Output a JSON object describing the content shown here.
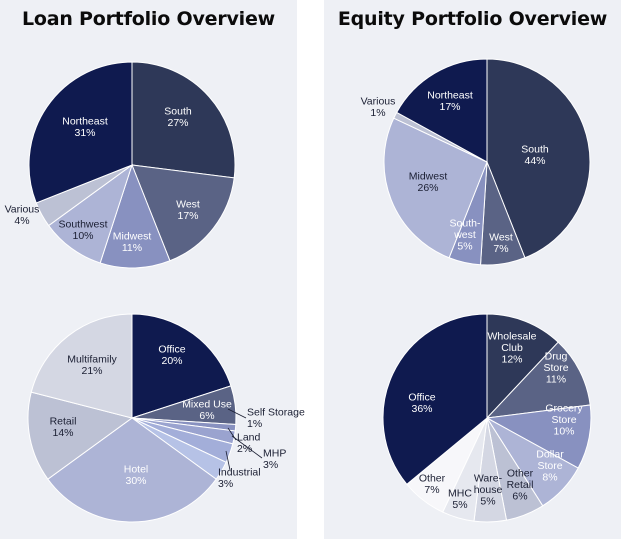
{
  "titles": {
    "left": "Loan Portfolio Overview",
    "right": "Equity Portfolio Overview"
  },
  "colors": {
    "navy": "#0f1a4f",
    "slate": "#2e3858",
    "slate_mid": "#5a6385",
    "periwinkle": "#8891c0",
    "lavender": "#adb4d6",
    "light_gray": "#bcc1d4",
    "pale": "#d4d7e3",
    "white": "#ffffff"
  },
  "chart_data": [
    {
      "type": "pie",
      "title": "Loan Portfolio Overview",
      "dimension": "Region",
      "slices": [
        {
          "label": "South",
          "value": 27,
          "display": "27%",
          "color": "#2e3858"
        },
        {
          "label": "West",
          "value": 17,
          "display": "17%",
          "color": "#5a6385"
        },
        {
          "label": "Midwest",
          "value": 11,
          "display": "11%",
          "color": "#8891c0"
        },
        {
          "label": "Southwest",
          "value": 10,
          "display": "10%",
          "color": "#adb4d6"
        },
        {
          "label": "Various",
          "value": 4,
          "display": "4%",
          "color": "#bcc1d4"
        },
        {
          "label": "Northeast",
          "value": 31,
          "display": "31%",
          "color": "#0f1a4f"
        }
      ]
    },
    {
      "type": "pie",
      "title": "Loan Portfolio Overview",
      "dimension": "Property Type",
      "slices": [
        {
          "label": "Office",
          "value": 20,
          "display": "20%",
          "color": "#0f1a4f"
        },
        {
          "label": "Mixed Use",
          "value": 6,
          "display": "6%",
          "color": "#5a6385"
        },
        {
          "label": "Self Storage",
          "value": 1,
          "display": "1%",
          "color": "#8891c0"
        },
        {
          "label": "Land",
          "value": 2,
          "display": "2%",
          "color": "#9aa3cf"
        },
        {
          "label": "MHP",
          "value": 3,
          "display": "3%",
          "color": "#a3aed9"
        },
        {
          "label": "Industrial",
          "value": 3,
          "display": "3%",
          "color": "#b6c2e6"
        },
        {
          "label": "Hotel",
          "value": 30,
          "display": "30%",
          "color": "#adb4d6"
        },
        {
          "label": "Retail",
          "value": 14,
          "display": "14%",
          "color": "#bcc1d4"
        },
        {
          "label": "Multifamily",
          "value": 21,
          "display": "21%",
          "color": "#d4d7e3"
        }
      ]
    },
    {
      "type": "pie",
      "title": "Equity Portfolio Overview",
      "dimension": "Region",
      "slices": [
        {
          "label": "South",
          "value": 44,
          "display": "44%",
          "color": "#2e3858"
        },
        {
          "label": "West",
          "value": 7,
          "display": "7%",
          "color": "#5a6385"
        },
        {
          "label": "South-west",
          "value": 5,
          "display": "5%",
          "color": "#8891c0"
        },
        {
          "label": "Midwest",
          "value": 26,
          "display": "26%",
          "color": "#adb4d6"
        },
        {
          "label": "Various",
          "value": 1,
          "display": "1%",
          "color": "#bcc1d4"
        },
        {
          "label": "Northeast",
          "value": 17,
          "display": "17%",
          "color": "#0f1a4f"
        }
      ]
    },
    {
      "type": "pie",
      "title": "Equity Portfolio Overview",
      "dimension": "Property Type",
      "slices": [
        {
          "label": "Wholesale Club",
          "value": 12,
          "display": "12%",
          "color": "#2e3858"
        },
        {
          "label": "Drug Store",
          "value": 11,
          "display": "11%",
          "color": "#5a6385"
        },
        {
          "label": "Grocery Store",
          "value": 10,
          "display": "10%",
          "color": "#8891c0"
        },
        {
          "label": "Dollar Store",
          "value": 8,
          "display": "8%",
          "color": "#adb4d6"
        },
        {
          "label": "Other Retail",
          "value": 6,
          "display": "6%",
          "color": "#bcc1d4"
        },
        {
          "label": "Ware-house",
          "value": 5,
          "display": "5%",
          "color": "#d4d7e3"
        },
        {
          "label": "MHC",
          "value": 5,
          "display": "5%",
          "color": "#e6e8ef"
        },
        {
          "label": "Other",
          "value": 7,
          "display": "7%",
          "color": "#f7f7fa"
        },
        {
          "label": "Office",
          "value": 36,
          "display": "36%",
          "color": "#0f1a4f"
        }
      ]
    }
  ]
}
